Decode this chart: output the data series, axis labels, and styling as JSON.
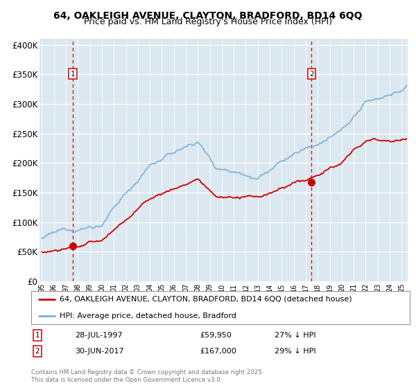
{
  "title": "64, OAKLEIGH AVENUE, CLAYTON, BRADFORD, BD14 6QQ",
  "subtitle": "Price paid vs. HM Land Registry's House Price Index (HPI)",
  "ylim": [
    0,
    410000
  ],
  "yticks": [
    0,
    50000,
    100000,
    150000,
    200000,
    250000,
    300000,
    350000,
    400000
  ],
  "ytick_labels": [
    "£0",
    "£50K",
    "£100K",
    "£150K",
    "£200K",
    "£250K",
    "£300K",
    "£350K",
    "£400K"
  ],
  "xlim_start": 1994.8,
  "xlim_end": 2025.5,
  "xtick_years": [
    1995,
    1996,
    1997,
    1998,
    1999,
    2000,
    2001,
    2002,
    2003,
    2004,
    2005,
    2006,
    2007,
    2008,
    2009,
    2010,
    2011,
    2012,
    2013,
    2014,
    2015,
    2016,
    2017,
    2018,
    2019,
    2020,
    2021,
    2022,
    2023,
    2024,
    2025
  ],
  "xtick_labels": [
    "95",
    "96",
    "97",
    "98",
    "99",
    "00",
    "01",
    "02",
    "03",
    "04",
    "05",
    "06",
    "07",
    "08",
    "09",
    "10",
    "11",
    "12",
    "13",
    "14",
    "15",
    "16",
    "17",
    "18",
    "19",
    "20",
    "21",
    "22",
    "23",
    "24",
    "25"
  ],
  "sale1_x": 1997.56,
  "sale1_y_red": 59950,
  "sale1_label": "1",
  "sale1_date": "28-JUL-1997",
  "sale1_price": "£59,950",
  "sale1_hpi": "27% ↓ HPI",
  "sale2_x": 2017.49,
  "sale2_y_red": 167000,
  "sale2_label": "2",
  "sale2_date": "30-JUN-2017",
  "sale2_price": "£167,000",
  "sale2_hpi": "29% ↓ HPI",
  "red_color": "#cc0000",
  "blue_color": "#7aaed4",
  "plot_bg": "#dce8f0",
  "fig_bg": "#ffffff",
  "legend_label_red": "64, OAKLEIGH AVENUE, CLAYTON, BRADFORD, BD14 6QQ (detached house)",
  "legend_label_blue": "HPI: Average price, detached house, Bradford",
  "copyright": "Contains HM Land Registry data © Crown copyright and database right 2025.\nThis data is licensed under the Open Government Licence v3.0.",
  "title_fontsize": 10,
  "subtitle_fontsize": 9,
  "axis_fontsize": 8.5,
  "legend_fontsize": 8
}
